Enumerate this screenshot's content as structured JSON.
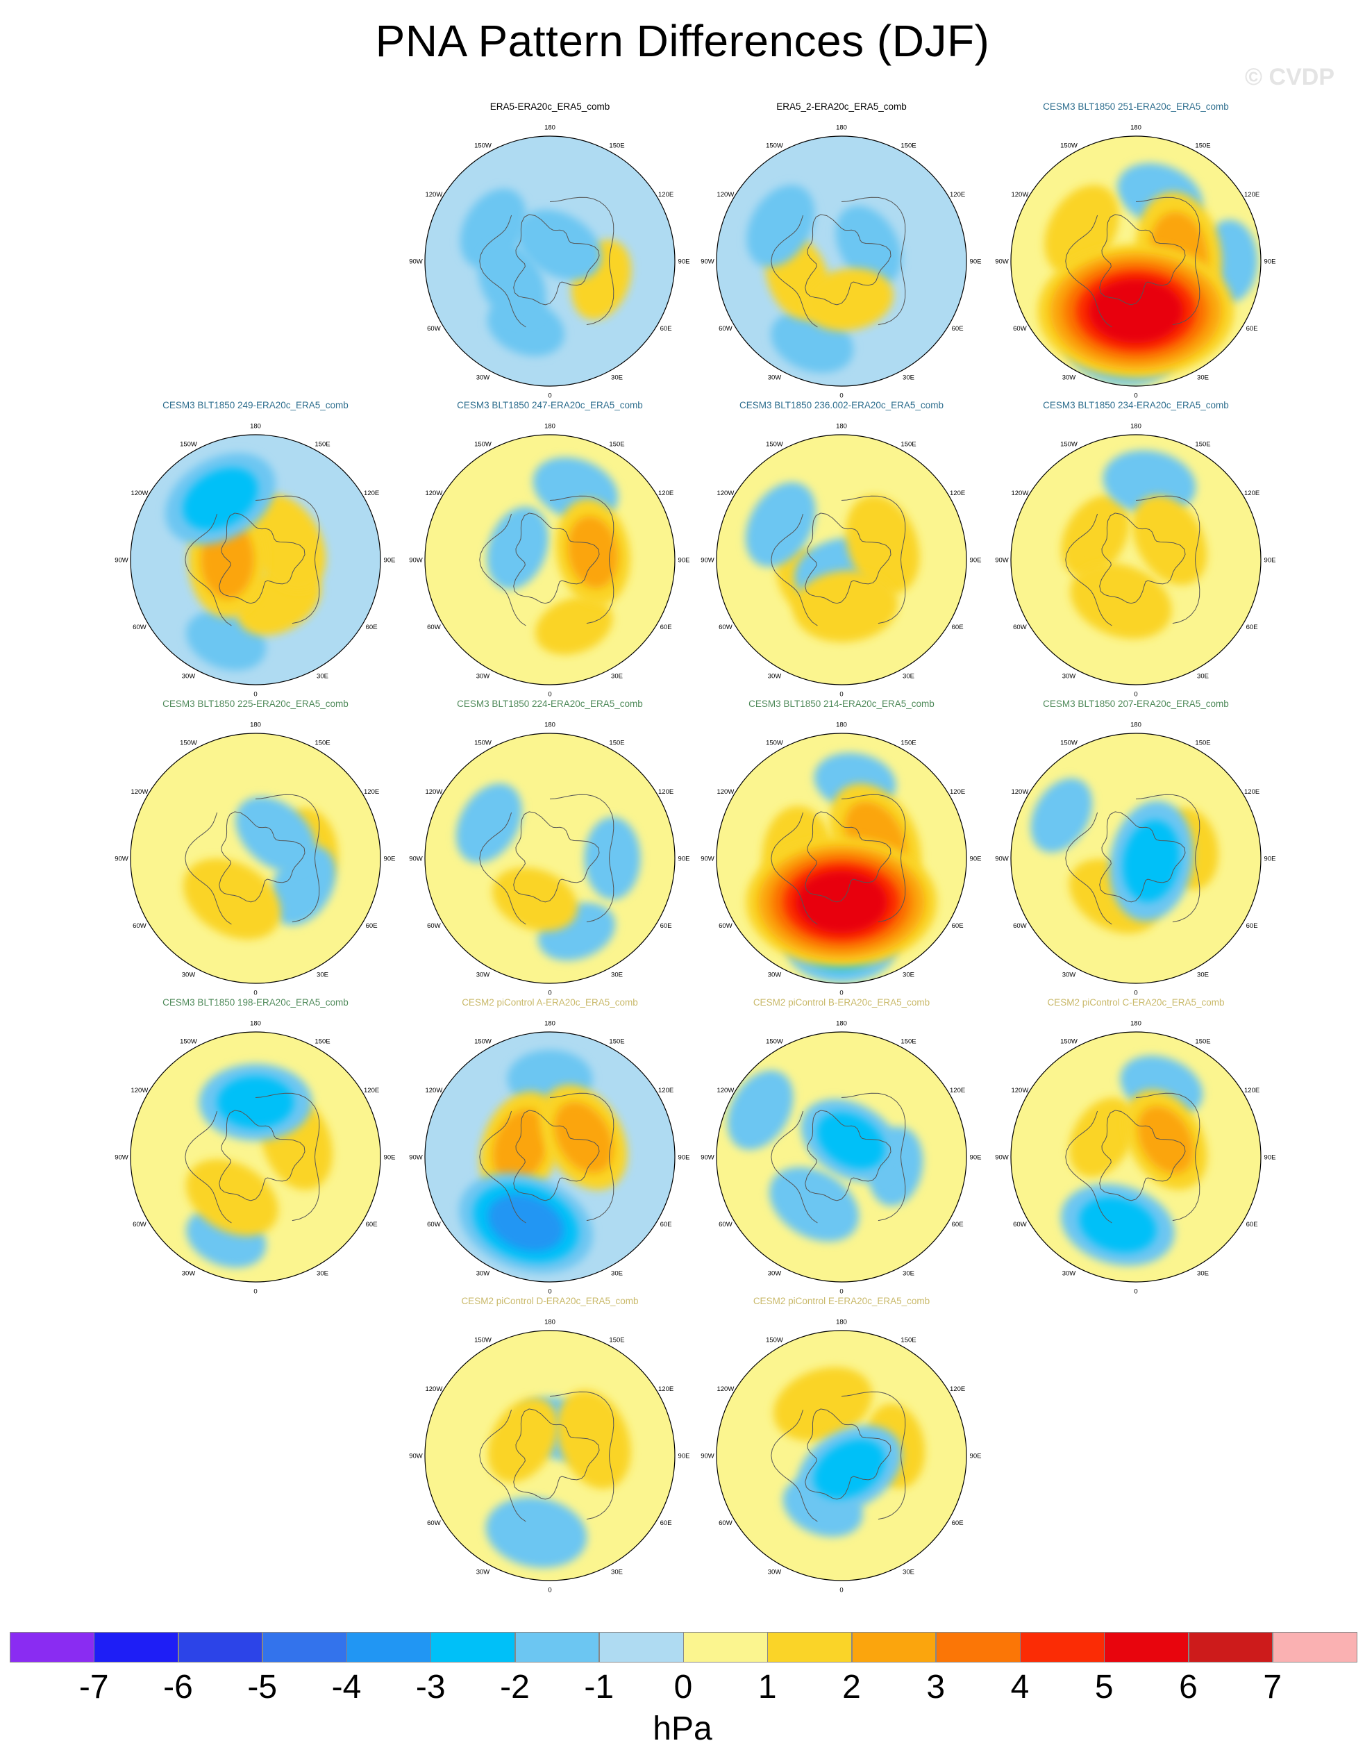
{
  "title": "PNA Pattern Differences (DJF)",
  "watermark": "© CVDP",
  "chart_data": {
    "type": "heatmap",
    "projection": "north-polar-stereographic",
    "variable": "PNA pattern difference",
    "units": "hPa",
    "lon_labels": [
      "180",
      "150E",
      "120E",
      "90E",
      "60E",
      "30E",
      "0",
      "30W",
      "60W",
      "90W",
      "120W",
      "150W"
    ],
    "colorbar": {
      "levels": [
        "-7",
        "-6",
        "-5",
        "-4",
        "-3",
        "-2",
        "-1",
        "0",
        "1",
        "2",
        "3",
        "4",
        "5",
        "6",
        "7"
      ],
      "colors": [
        "#8a2cf2",
        "#1e1ef6",
        "#2c44e8",
        "#3373ec",
        "#2196f3",
        "#00c0f8",
        "#6cc6f2",
        "#afdbf2",
        "#fbf58f",
        "#fad428",
        "#fba50d",
        "#fb7606",
        "#fb2c05",
        "#e8050d",
        "#cd1b1b",
        "#fab1b2"
      ],
      "units": "hPa"
    },
    "panels": [
      {
        "title": "ERA5-ERA20c_ERA5_comb",
        "title_color": "#000000",
        "bias": -0.1,
        "blobs": [
          {
            "lon": 240,
            "lat": 62,
            "v": -1.3
          },
          {
            "lon": 30,
            "lat": 78,
            "v": -1.4
          },
          {
            "lon": 300,
            "lat": 48,
            "v": -1.2
          },
          {
            "lon": 200,
            "lat": 45,
            "v": -1.0
          },
          {
            "lon": 110,
            "lat": 55,
            "v": 1.1
          }
        ]
      },
      {
        "title": "ERA5_2-ERA20c_ERA5_comb",
        "title_color": "#000000",
        "bias": -0.1,
        "blobs": [
          {
            "lon": 170,
            "lat": 65,
            "v": 1.4
          },
          {
            "lon": 250,
            "lat": 60,
            "v": 1.3
          },
          {
            "lon": 60,
            "lat": 70,
            "v": -1.2
          },
          {
            "lon": 300,
            "lat": 45,
            "v": -1.3
          },
          {
            "lon": 200,
            "lat": 35,
            "v": -1.2
          }
        ]
      },
      {
        "title": "CESM3 BLT1850 251-ERA20c_ERA5_comb",
        "title_color": "#2e6e8e",
        "bias": 0.4,
        "blobs": [
          {
            "lon": 180,
            "lat": 58,
            "v": 5.2
          },
          {
            "lon": 80,
            "lat": 62,
            "v": 2.6
          },
          {
            "lon": 190,
            "lat": 35,
            "v": -2.3
          },
          {
            "lon": 300,
            "lat": 50,
            "v": 1.6
          },
          {
            "lon": 20,
            "lat": 45,
            "v": -1.3
          },
          {
            "lon": 90,
            "lat": 30,
            "v": -1.1
          }
        ]
      },
      {
        "title": "CESM3 BLT1850 249-ERA20c_ERA5_comb",
        "title_color": "#2e6e8e",
        "bias": -0.2,
        "blobs": [
          {
            "lon": 270,
            "lat": 72,
            "v": 2.3
          },
          {
            "lon": 60,
            "lat": 68,
            "v": 1.9
          },
          {
            "lon": 150,
            "lat": 60,
            "v": 1.4
          },
          {
            "lon": 330,
            "lat": 45,
            "v": -2.4
          },
          {
            "lon": 200,
            "lat": 35,
            "v": -1.1
          }
        ]
      },
      {
        "title": "CESM3 BLT1850 247-ERA20c_ERA5_comb",
        "title_color": "#2e6e8e",
        "bias": 0.3,
        "blobs": [
          {
            "lon": 80,
            "lat": 62,
            "v": 2.0
          },
          {
            "lon": 290,
            "lat": 68,
            "v": -1.2
          },
          {
            "lon": 20,
            "lat": 42,
            "v": -1.3
          },
          {
            "lon": 160,
            "lat": 45,
            "v": 1.0
          }
        ]
      },
      {
        "title": "CESM3 BLT1850 236.002-ERA20c_ERA5_comb",
        "title_color": "#2e6e8e",
        "bias": 0.0,
        "blobs": [
          {
            "lon": 175,
            "lat": 60,
            "v": 1.9
          },
          {
            "lon": 170,
            "lat": 82,
            "v": -1.7
          },
          {
            "lon": 70,
            "lat": 62,
            "v": 1.8
          },
          {
            "lon": 300,
            "lat": 45,
            "v": -1.4
          },
          {
            "lon": 230,
            "lat": 65,
            "v": 1.2
          }
        ]
      },
      {
        "title": "CESM3 BLT1850 234-ERA20c_ERA5_comb",
        "title_color": "#2e6e8e",
        "bias": 0.3,
        "blobs": [
          {
            "lon": 200,
            "lat": 62,
            "v": 1.9
          },
          {
            "lon": 60,
            "lat": 65,
            "v": 1.6
          },
          {
            "lon": 300,
            "lat": 60,
            "v": 1.3
          },
          {
            "lon": 10,
            "lat": 40,
            "v": -1.5
          }
        ]
      },
      {
        "title": "CESM3 BLT1850 225-ERA20c_ERA5_comb",
        "title_color": "#4f8a5a",
        "bias": 0.3,
        "blobs": [
          {
            "lon": 210,
            "lat": 60,
            "v": 1.9
          },
          {
            "lon": 40,
            "lat": 70,
            "v": -1.4
          },
          {
            "lon": 120,
            "lat": 55,
            "v": -1.2
          },
          {
            "lon": 80,
            "lat": 55,
            "v": 1.1
          }
        ]
      },
      {
        "title": "CESM3 BLT1850 224-ERA20c_ERA5_comb",
        "title_color": "#4f8a5a",
        "bias": 0.6,
        "blobs": [
          {
            "lon": 200,
            "lat": 62,
            "v": 1.3
          },
          {
            "lon": 300,
            "lat": 45,
            "v": -1.2
          },
          {
            "lon": 90,
            "lat": 50,
            "v": -1.1
          },
          {
            "lon": 160,
            "lat": 40,
            "v": -1.0
          }
        ]
      },
      {
        "title": "CESM3 BLT1850 214-ERA20c_ERA5_comb",
        "title_color": "#4f8a5a",
        "bias": 0.3,
        "blobs": [
          {
            "lon": 180,
            "lat": 62,
            "v": 5.0
          },
          {
            "lon": 60,
            "lat": 65,
            "v": 2.4
          },
          {
            "lon": 270,
            "lat": 62,
            "v": 1.9
          },
          {
            "lon": 180,
            "lat": 35,
            "v": -2.2
          },
          {
            "lon": 10,
            "lat": 40,
            "v": -1.1
          }
        ]
      },
      {
        "title": "CESM3 BLT1850 207-ERA20c_ERA5_comb",
        "title_color": "#4f8a5a",
        "bias": 0.4,
        "blobs": [
          {
            "lon": 210,
            "lat": 62,
            "v": 1.6
          },
          {
            "lon": 100,
            "lat": 80,
            "v": -2.5
          },
          {
            "lon": 80,
            "lat": 55,
            "v": 1.1
          },
          {
            "lon": 300,
            "lat": 35,
            "v": -1.0
          }
        ]
      },
      {
        "title": "CESM3 BLT1850 198-ERA20c_ERA5_comb",
        "title_color": "#4f8a5a",
        "bias": 0.3,
        "blobs": [
          {
            "lon": 210,
            "lat": 60,
            "v": 1.7
          },
          {
            "lon": 70,
            "lat": 62,
            "v": 1.7
          },
          {
            "lon": 0,
            "lat": 55,
            "v": -2.2
          },
          {
            "lon": 200,
            "lat": 35,
            "v": -1.1
          }
        ]
      },
      {
        "title": "CESM2 piControl A-ERA20c_ERA5_comb",
        "title_color": "#c9b96a",
        "bias": -0.1,
        "blobs": [
          {
            "lon": 200,
            "lat": 45,
            "v": -3.1
          },
          {
            "lon": 290,
            "lat": 70,
            "v": 2.2
          },
          {
            "lon": 60,
            "lat": 65,
            "v": 2.2
          },
          {
            "lon": 0,
            "lat": 40,
            "v": -1.2
          }
        ]
      },
      {
        "title": "CESM2 piControl B-ERA20c_ERA5_comb",
        "title_color": "#c9b96a",
        "bias": 0.3,
        "blobs": [
          {
            "lon": 210,
            "lat": 55,
            "v": -1.6
          },
          {
            "lon": 30,
            "lat": 78,
            "v": -2.0
          },
          {
            "lon": 300,
            "lat": 30,
            "v": -1.2
          },
          {
            "lon": 100,
            "lat": 55,
            "v": -1.0
          }
        ]
      },
      {
        "title": "CESM2 piControl C-ERA20c_ERA5_comb",
        "title_color": "#c9b96a",
        "bias": 0.2,
        "blobs": [
          {
            "lon": 195,
            "lat": 45,
            "v": -2.3
          },
          {
            "lon": 60,
            "lat": 68,
            "v": 2.0
          },
          {
            "lon": 300,
            "lat": 65,
            "v": 1.2
          },
          {
            "lon": 20,
            "lat": 42,
            "v": -1.2
          }
        ]
      },
      {
        "title": "CESM2 piControl D-ERA20c_ERA5_comb",
        "title_color": "#c9b96a",
        "bias": 0.2,
        "blobs": [
          {
            "lon": 190,
            "lat": 40,
            "v": -1.8
          },
          {
            "lon": 70,
            "lat": 60,
            "v": 1.8
          },
          {
            "lon": 300,
            "lat": 70,
            "v": 1.4
          },
          {
            "lon": 20,
            "lat": 72,
            "v": -1.3
          }
        ]
      },
      {
        "title": "CESM2 piControl E-ERA20c_ERA5_comb",
        "title_color": "#c9b96a",
        "bias": 0.3,
        "blobs": [
          {
            "lon": 150,
            "lat": 80,
            "v": -2.2
          },
          {
            "lon": 340,
            "lat": 55,
            "v": 1.8
          },
          {
            "lon": 80,
            "lat": 55,
            "v": 1.2
          },
          {
            "lon": 200,
            "lat": 55,
            "v": -1.1
          }
        ]
      }
    ]
  }
}
